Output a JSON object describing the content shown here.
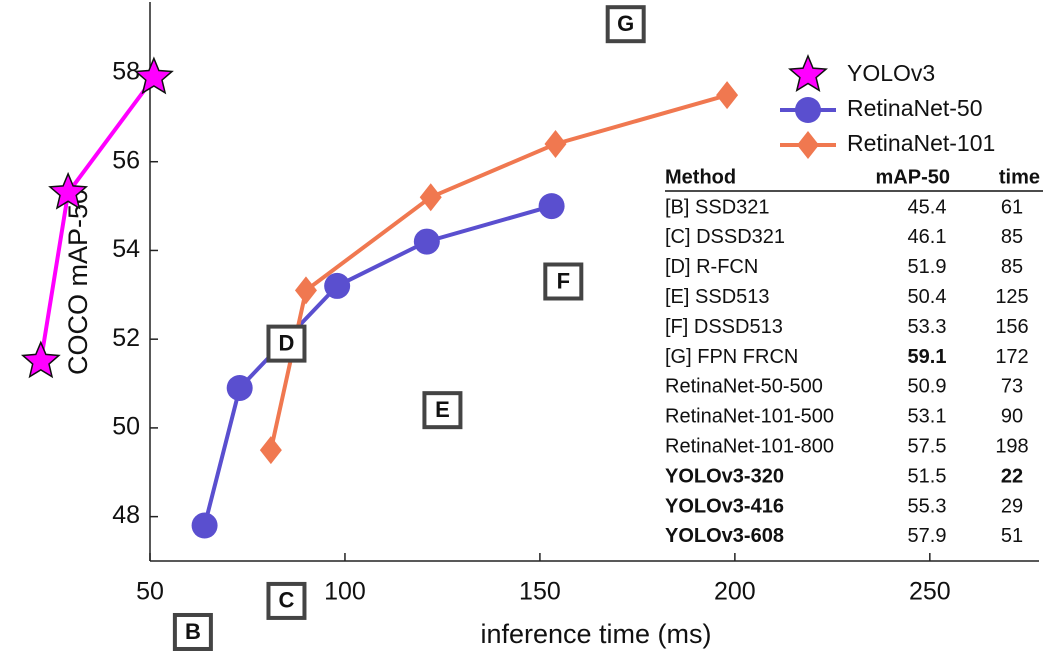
{
  "chart_data": {
    "type": "line",
    "xlabel": "inference time (ms)",
    "ylabel": "COCO mAP-50",
    "xlim": [
      50,
      278
    ],
    "ylim": [
      47,
      59.6
    ],
    "xticks": [
      50,
      100,
      150,
      200,
      250
    ],
    "yticks": [
      48,
      50,
      52,
      54,
      56,
      58
    ],
    "legend": "upper right",
    "series": [
      {
        "name": "YOLOv3",
        "color": "#ff00ff",
        "marker": "star",
        "x": [
          22,
          29,
          51
        ],
        "values": [
          51.5,
          55.3,
          57.9
        ]
      },
      {
        "name": "RetinaNet-50",
        "color": "#5a4fcf",
        "marker": "circle",
        "x": [
          64,
          73,
          98,
          121,
          153
        ],
        "values": [
          47.8,
          50.9,
          53.2,
          54.2,
          55.0
        ]
      },
      {
        "name": "RetinaNet-101",
        "color": "#f07850",
        "marker": "diamond",
        "x": [
          81,
          90,
          122,
          154,
          198
        ],
        "values": [
          49.5,
          53.1,
          55.2,
          56.4,
          57.5
        ]
      }
    ],
    "annotations": [
      {
        "text": "B",
        "x": 61,
        "y": 45.4
      },
      {
        "text": "C",
        "x": 85,
        "y": 46.1
      },
      {
        "text": "D",
        "x": 85,
        "y": 51.9
      },
      {
        "text": "E",
        "x": 125,
        "y": 50.4
      },
      {
        "text": "F",
        "x": 156,
        "y": 53.3
      },
      {
        "text": "G",
        "x": 172,
        "y": 59.1
      }
    ],
    "table": {
      "header": [
        "Method",
        "mAP-50",
        "time"
      ],
      "rows": [
        [
          "[B] SSD321",
          45.4,
          61
        ],
        [
          "[C] DSSD321",
          46.1,
          85
        ],
        [
          "[D] R-FCN",
          51.9,
          85
        ],
        [
          "[E] SSD513",
          50.4,
          125
        ],
        [
          "[F] DSSD513",
          53.3,
          156
        ],
        [
          "[G] FPN FRCN",
          59.1,
          172
        ],
        [
          "RetinaNet-50-500",
          50.9,
          73
        ],
        [
          "RetinaNet-101-500",
          53.1,
          90
        ],
        [
          "RetinaNet-101-800",
          57.5,
          198
        ],
        [
          "YOLOv3-320",
          51.5,
          22
        ],
        [
          "YOLOv3-416",
          55.3,
          29
        ],
        [
          "YOLOv3-608",
          57.9,
          51
        ]
      ],
      "bold_cells": [
        [
          5,
          1
        ],
        [
          9,
          0
        ],
        [
          9,
          2
        ],
        [
          10,
          0
        ],
        [
          11,
          0
        ]
      ]
    }
  }
}
